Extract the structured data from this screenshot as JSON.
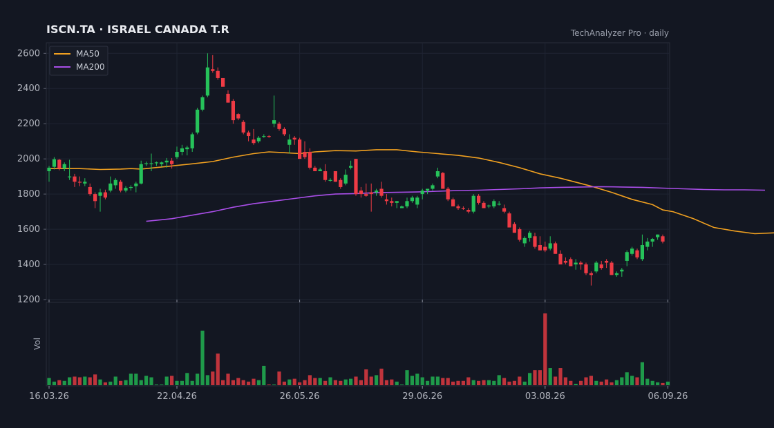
{
  "header": {
    "title": "ISCN.TA  ·  ISRAEL CANADA T.R",
    "source": "TechAnalyzer Pro · daily"
  },
  "colors": {
    "background": "#131722",
    "grid": "#1f2433",
    "axis_text": "#b2b5be",
    "up": "#26c25a",
    "down": "#ef3b45",
    "ma50": "#f0a020",
    "ma200": "#a94ee8"
  },
  "chart_data": {
    "type": "candlestick",
    "title": "ISCN.TA  ·  ISRAEL CANADA T.R",
    "interval": "daily",
    "x_tick_labels": [
      "16.03.26",
      "22.04.26",
      "26.05.26",
      "29.06.26",
      "03.08.26",
      "06.09.26"
    ],
    "x_tick_index": [
      0,
      25,
      49,
      73,
      97,
      121
    ],
    "ylim": [
      1200,
      2660
    ],
    "y_ticks": [
      1200,
      1400,
      1600,
      1800,
      2000,
      2200,
      2400,
      2600
    ],
    "volume_label": "Vol",
    "grid": true,
    "legend": {
      "position": "top-left",
      "entries": [
        "MA50",
        "MA200"
      ]
    },
    "candles": [
      [
        1930,
        1960,
        1870,
        1950
      ],
      [
        1955,
        2010,
        1940,
        1998
      ],
      [
        1995,
        2000,
        1935,
        1945
      ],
      [
        1945,
        1980,
        1930,
        1970
      ],
      [
        1895,
        1995,
        1880,
        1900
      ],
      [
        1900,
        1915,
        1840,
        1870
      ],
      [
        1870,
        1900,
        1845,
        1865
      ],
      [
        1860,
        1890,
        1845,
        1870
      ],
      [
        1840,
        1860,
        1790,
        1800
      ],
      [
        1800,
        1810,
        1720,
        1760
      ],
      [
        1790,
        1830,
        1700,
        1810
      ],
      [
        1810,
        1825,
        1770,
        1780
      ],
      [
        1820,
        1900,
        1810,
        1860
      ],
      [
        1850,
        1890,
        1830,
        1880
      ],
      [
        1870,
        1880,
        1810,
        1820
      ],
      [
        1820,
        1845,
        1810,
        1835
      ],
      [
        1835,
        1850,
        1820,
        1840
      ],
      [
        1845,
        1870,
        1810,
        1860
      ],
      [
        1860,
        1990,
        1855,
        1970
      ],
      [
        1975,
        1985,
        1960,
        1975
      ],
      [
        1970,
        2030,
        1930,
        1975
      ],
      [
        1975,
        1985,
        1960,
        1980
      ],
      [
        1970,
        1985,
        1955,
        1980
      ],
      [
        1980,
        2005,
        1950,
        1990
      ],
      [
        1990,
        2005,
        1945,
        1970
      ],
      [
        2010,
        2070,
        2000,
        2040
      ],
      [
        2040,
        2080,
        2020,
        2060
      ],
      [
        2055,
        2075,
        2020,
        2065
      ],
      [
        2060,
        2150,
        2040,
        2140
      ],
      [
        2150,
        2290,
        2140,
        2280
      ],
      [
        2280,
        2360,
        2270,
        2350
      ],
      [
        2360,
        2600,
        2350,
        2520
      ],
      [
        2510,
        2590,
        2490,
        2500
      ],
      [
        2500,
        2520,
        2450,
        2460
      ],
      [
        2460,
        2460,
        2410,
        2410
      ],
      [
        2370,
        2390,
        2320,
        2320
      ],
      [
        2330,
        2340,
        2200,
        2220
      ],
      [
        2255,
        2260,
        2220,
        2230
      ],
      [
        2210,
        2220,
        2140,
        2150
      ],
      [
        2150,
        2160,
        2100,
        2130
      ],
      [
        2110,
        2170,
        2080,
        2090
      ],
      [
        2100,
        2130,
        2090,
        2120
      ],
      [
        2130,
        2140,
        2120,
        2130
      ],
      [
        2130,
        2135,
        2120,
        2125
      ],
      [
        2200,
        2360,
        2180,
        2220
      ],
      [
        2200,
        2210,
        2160,
        2170
      ],
      [
        2170,
        2180,
        2130,
        2140
      ],
      [
        2080,
        2140,
        2030,
        2110
      ],
      [
        2120,
        2130,
        2080,
        2110
      ],
      [
        2110,
        2120,
        2010,
        2000
      ],
      [
        2040,
        2100,
        2000,
        2010
      ],
      [
        2040,
        2060,
        1940,
        1950
      ],
      [
        1950,
        1960,
        1930,
        1930
      ],
      [
        1930,
        1950,
        1930,
        1940
      ],
      [
        1930,
        1970,
        1870,
        1880
      ],
      [
        1880,
        1890,
        1870,
        1880
      ],
      [
        1930,
        1930,
        1870,
        1870
      ],
      [
        1880,
        1890,
        1830,
        1840
      ],
      [
        1860,
        1940,
        1850,
        1910
      ],
      [
        1950,
        1990,
        1940,
        1960
      ],
      [
        2000,
        2000,
        1790,
        1800
      ],
      [
        1820,
        1840,
        1780,
        1800
      ],
      [
        1800,
        1860,
        1785,
        1790
      ],
      [
        1810,
        1860,
        1700,
        1800
      ],
      [
        1810,
        1830,
        1790,
        1820
      ],
      [
        1830,
        1870,
        1780,
        1790
      ],
      [
        1770,
        1800,
        1740,
        1760
      ],
      [
        1760,
        1780,
        1730,
        1750
      ],
      [
        1750,
        1760,
        1720,
        1760
      ],
      [
        1720,
        1735,
        1720,
        1730
      ],
      [
        1730,
        1780,
        1720,
        1760
      ],
      [
        1760,
        1790,
        1750,
        1780
      ],
      [
        1740,
        1790,
        1720,
        1780
      ],
      [
        1800,
        1830,
        1770,
        1820
      ],
      [
        1820,
        1830,
        1800,
        1830
      ],
      [
        1830,
        1860,
        1820,
        1850
      ],
      [
        1900,
        1950,
        1890,
        1930
      ],
      [
        1920,
        1925,
        1830,
        1830
      ],
      [
        1830,
        1840,
        1760,
        1770
      ],
      [
        1770,
        1780,
        1730,
        1730
      ],
      [
        1730,
        1740,
        1710,
        1720
      ],
      [
        1720,
        1730,
        1710,
        1715
      ],
      [
        1710,
        1720,
        1690,
        1700
      ],
      [
        1700,
        1800,
        1690,
        1790
      ],
      [
        1790,
        1800,
        1740,
        1750
      ],
      [
        1750,
        1760,
        1730,
        1720
      ],
      [
        1730,
        1740,
        1720,
        1735
      ],
      [
        1730,
        1770,
        1720,
        1760
      ],
      [
        1740,
        1760,
        1735,
        1745
      ],
      [
        1720,
        1740,
        1690,
        1700
      ],
      [
        1690,
        1700,
        1610,
        1610
      ],
      [
        1630,
        1640,
        1580,
        1580
      ],
      [
        1600,
        1610,
        1530,
        1540
      ],
      [
        1520,
        1560,
        1500,
        1550
      ],
      [
        1550,
        1590,
        1530,
        1580
      ],
      [
        1560,
        1580,
        1490,
        1500
      ],
      [
        1510,
        1560,
        1480,
        1480
      ],
      [
        1500,
        1530,
        1470,
        1480
      ],
      [
        1490,
        1560,
        1480,
        1520
      ],
      [
        1520,
        1530,
        1460,
        1460
      ],
      [
        1460,
        1480,
        1400,
        1400
      ],
      [
        1420,
        1440,
        1400,
        1410
      ],
      [
        1430,
        1440,
        1390,
        1390
      ],
      [
        1400,
        1430,
        1370,
        1410
      ],
      [
        1410,
        1420,
        1370,
        1400
      ],
      [
        1400,
        1410,
        1340,
        1350
      ],
      [
        1350,
        1360,
        1280,
        1340
      ],
      [
        1360,
        1420,
        1350,
        1410
      ],
      [
        1400,
        1420,
        1370,
        1380
      ],
      [
        1420,
        1430,
        1380,
        1410
      ],
      [
        1410,
        1420,
        1340,
        1340
      ],
      [
        1340,
        1360,
        1330,
        1350
      ],
      [
        1360,
        1380,
        1330,
        1370
      ],
      [
        1420,
        1480,
        1390,
        1470
      ],
      [
        1460,
        1500,
        1450,
        1490
      ],
      [
        1480,
        1490,
        1430,
        1440
      ],
      [
        1430,
        1570,
        1420,
        1510
      ],
      [
        1500,
        1550,
        1480,
        1530
      ],
      [
        1530,
        1550,
        1500,
        1545
      ],
      [
        1555,
        1570,
        1540,
        1570
      ],
      [
        1560,
        1570,
        1520,
        1530
      ]
    ],
    "volume": [
      0.1,
      0.05,
      0.07,
      0.06,
      0.11,
      0.12,
      0.11,
      0.12,
      0.11,
      0.15,
      0.08,
      0.04,
      0.05,
      0.12,
      0.06,
      0.07,
      0.16,
      0.16,
      0.07,
      0.13,
      0.11,
      0.01,
      0.01,
      0.12,
      0.13,
      0.06,
      0.06,
      0.17,
      0.06,
      0.16,
      0.76,
      0.14,
      0.19,
      0.44,
      0.07,
      0.16,
      0.07,
      0.1,
      0.07,
      0.05,
      0.09,
      0.07,
      0.27,
      0.01,
      0.01,
      0.19,
      0.05,
      0.08,
      0.09,
      0.04,
      0.07,
      0.14,
      0.1,
      0.1,
      0.06,
      0.11,
      0.07,
      0.06,
      0.08,
      0.09,
      0.12,
      0.07,
      0.22,
      0.12,
      0.14,
      0.23,
      0.07,
      0.08,
      0.05,
      0.01,
      0.21,
      0.13,
      0.16,
      0.11,
      0.06,
      0.12,
      0.12,
      0.1,
      0.1,
      0.05,
      0.06,
      0.06,
      0.11,
      0.07,
      0.06,
      0.07,
      0.07,
      0.06,
      0.14,
      0.1,
      0.05,
      0.06,
      0.12,
      0.05,
      0.17,
      0.21,
      0.21,
      1.0,
      0.24,
      0.12,
      0.24,
      0.11,
      0.06,
      0.02,
      0.06,
      0.11,
      0.13,
      0.06,
      0.05,
      0.08,
      0.04,
      0.07,
      0.11,
      0.18,
      0.13,
      0.11,
      0.32,
      0.09,
      0.06,
      0.04,
      0.03,
      0.05
    ],
    "series": [
      {
        "name": "MA50",
        "points": [
          [
            0,
            1945
          ],
          [
            6,
            1945
          ],
          [
            10,
            1940
          ],
          [
            14,
            1942
          ],
          [
            16,
            1945
          ],
          [
            18,
            1942
          ],
          [
            20,
            1948
          ],
          [
            24,
            1960
          ],
          [
            28,
            1972
          ],
          [
            32,
            1985
          ],
          [
            36,
            2010
          ],
          [
            40,
            2030
          ],
          [
            43,
            2040
          ],
          [
            46,
            2035
          ],
          [
            49,
            2030
          ],
          [
            52,
            2040
          ],
          [
            56,
            2047
          ],
          [
            60,
            2045
          ],
          [
            64,
            2052
          ],
          [
            68,
            2052
          ],
          [
            72,
            2040
          ],
          [
            76,
            2030
          ],
          [
            80,
            2020
          ],
          [
            84,
            2005
          ],
          [
            88,
            1980
          ],
          [
            92,
            1950
          ],
          [
            96,
            1915
          ],
          [
            100,
            1890
          ],
          [
            104,
            1860
          ],
          [
            106,
            1845
          ],
          [
            110,
            1810
          ],
          [
            114,
            1770
          ],
          [
            118,
            1740
          ],
          [
            120,
            1710
          ],
          [
            122,
            1700
          ],
          [
            126,
            1660
          ],
          [
            130,
            1610
          ],
          [
            134,
            1590
          ],
          [
            138,
            1575
          ],
          [
            142,
            1580
          ]
        ]
      },
      {
        "name": "MA200",
        "points": [
          [
            19,
            1645
          ],
          [
            24,
            1660
          ],
          [
            28,
            1680
          ],
          [
            32,
            1700
          ],
          [
            36,
            1725
          ],
          [
            40,
            1745
          ],
          [
            44,
            1760
          ],
          [
            48,
            1775
          ],
          [
            52,
            1790
          ],
          [
            56,
            1800
          ],
          [
            60,
            1803
          ],
          [
            64,
            1808
          ],
          [
            68,
            1810
          ],
          [
            72,
            1812
          ],
          [
            76,
            1816
          ],
          [
            80,
            1820
          ],
          [
            84,
            1822
          ],
          [
            88,
            1826
          ],
          [
            92,
            1830
          ],
          [
            96,
            1835
          ],
          [
            100,
            1838
          ],
          [
            104,
            1840
          ],
          [
            108,
            1842
          ],
          [
            112,
            1840
          ],
          [
            116,
            1838
          ],
          [
            120,
            1834
          ],
          [
            124,
            1830
          ],
          [
            128,
            1826
          ],
          [
            132,
            1824
          ],
          [
            136,
            1824
          ],
          [
            140,
            1822
          ]
        ]
      }
    ]
  }
}
